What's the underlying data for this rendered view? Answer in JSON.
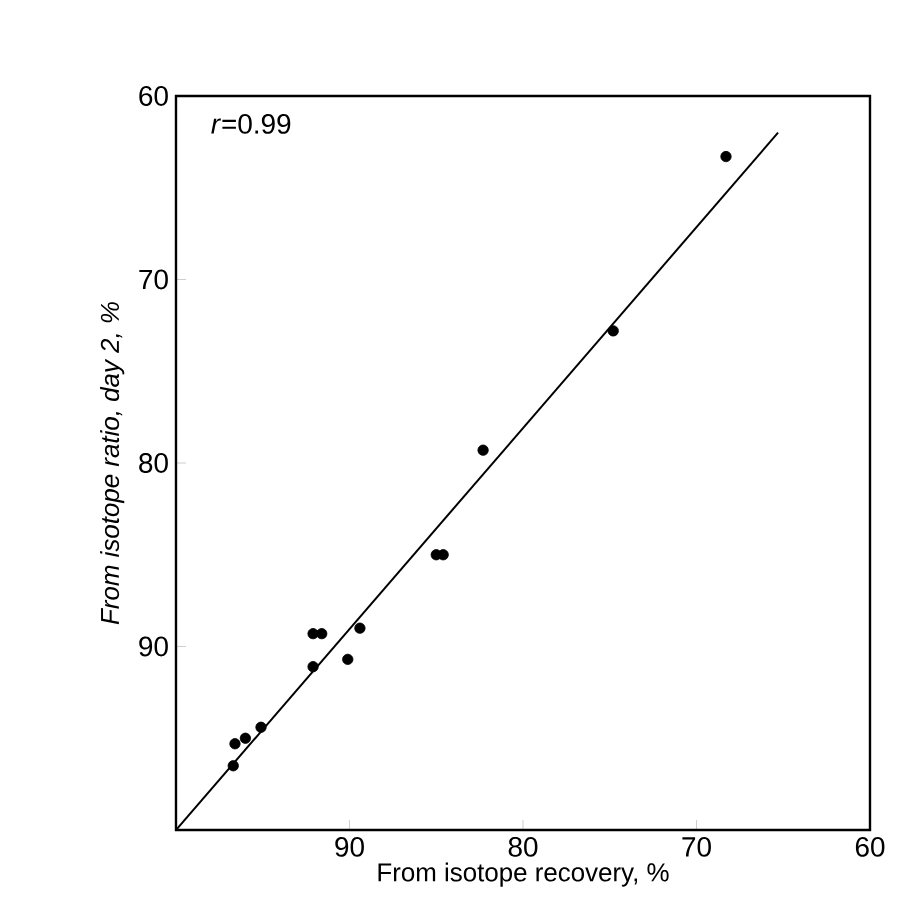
{
  "chart_data": {
    "type": "scatter",
    "xlabel": "From isotope recovery, %",
    "ylabel": "From isotope ratio, day 2, %",
    "annotations": [
      "*r*=0.99"
    ],
    "xlim": [
      100,
      60
    ],
    "ylim": [
      100,
      60
    ],
    "xticks": [
      90,
      80,
      70,
      60
    ],
    "yticks": [
      60,
      70,
      80,
      90
    ],
    "grid": false,
    "marker": "circle",
    "series": [
      {
        "color": "#000000",
        "x": [
          68.3,
          74.8,
          82.3,
          85.0,
          84.6,
          89.4,
          90.1,
          92.1,
          91.6,
          92.1,
          95.1,
          96.0,
          96.6,
          96.7
        ],
        "values": [
          63.3,
          72.8,
          79.3,
          85.0,
          85.0,
          89.0,
          90.7,
          89.3,
          89.3,
          91.1,
          94.4,
          95.0,
          95.3,
          96.5
        ]
      },
      {
        "type": "line",
        "color": "#000000",
        "marker": "none",
        "x": [
          100,
          65.3
        ],
        "values": [
          100,
          62.0
        ]
      }
    ]
  }
}
